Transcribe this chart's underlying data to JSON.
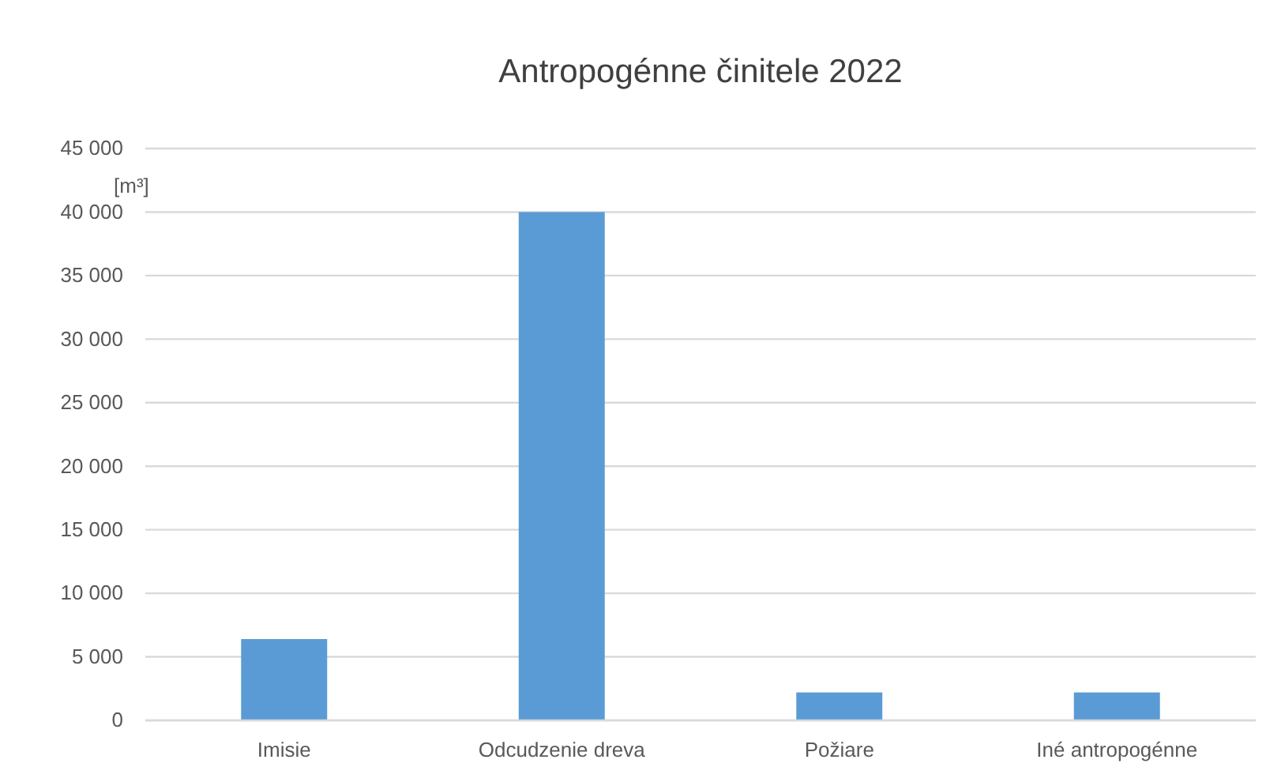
{
  "chart_data": {
    "type": "bar",
    "title": "Antropogénne činitele 2022",
    "ylabel": "[m³]",
    "categories": [
      "Imisie",
      "Odcudzenie dreva",
      "Požiare",
      "Iné antropogénne"
    ],
    "values": [
      6400,
      40000,
      2200,
      2200
    ],
    "color": "#5b9bd5",
    "ylim": [
      0,
      45000
    ],
    "yticks": [
      0,
      {
        "value": 5000,
        "label": "5 000"
      },
      {
        "value": 10000,
        "label": "10 000"
      },
      {
        "value": 15000,
        "label": "15 000"
      },
      {
        "value": 20000,
        "label": "20 000"
      },
      {
        "value": 25000,
        "label": "25 000"
      },
      {
        "value": 30000,
        "label": "30 000"
      },
      {
        "value": 35000,
        "label": "35 000"
      },
      {
        "value": 40000,
        "label": "40 000"
      },
      {
        "value": 45000,
        "label": "45 000"
      }
    ],
    "grid": "y"
  }
}
